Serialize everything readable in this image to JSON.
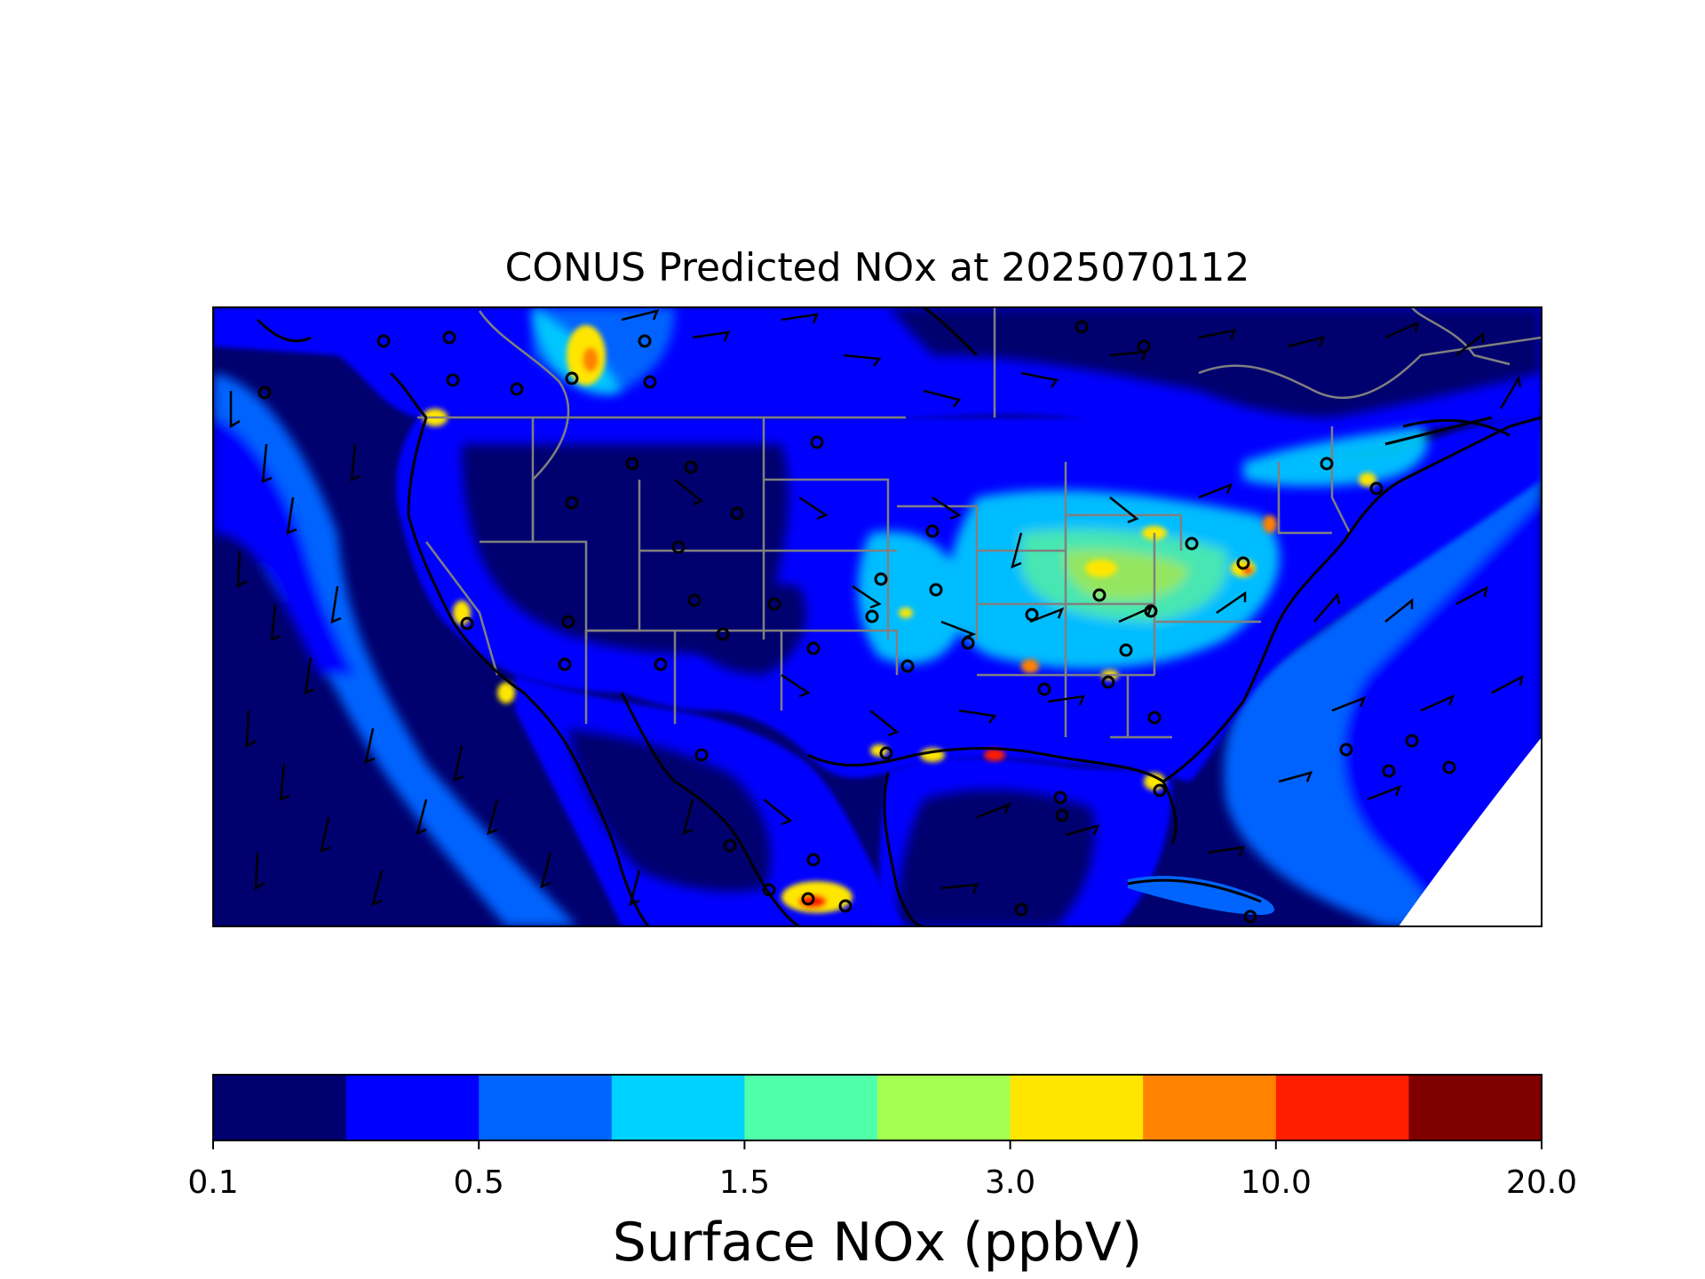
{
  "title": "CONUS Predicted NOx at 2025070112",
  "colorbar": {
    "label": "Surface NOx (ppbV)",
    "tick_labels": [
      "0.1",
      "0.5",
      "1.5",
      "3.0",
      "10.0",
      "20.0"
    ],
    "bins": 10,
    "colors": [
      "#00006e",
      "#0000ff",
      "#0064ff",
      "#00d2ff",
      "#50ffaa",
      "#a5ff50",
      "#ffe600",
      "#ff8200",
      "#ff1e00",
      "#800000"
    ]
  },
  "map": {
    "region": "CONUS",
    "overlays": [
      "state-borders",
      "coastlines",
      "wind-barbs",
      "station-markers"
    ],
    "land_colors": {
      "ocean_far": "#00006e",
      "ocean_near": "#0064ff",
      "land_low": "#00006e",
      "land_mid": "#0000ff",
      "hotspot": "#ffe600",
      "hot": "#ff1e00",
      "border": "#808080",
      "coast": "#000000"
    }
  }
}
